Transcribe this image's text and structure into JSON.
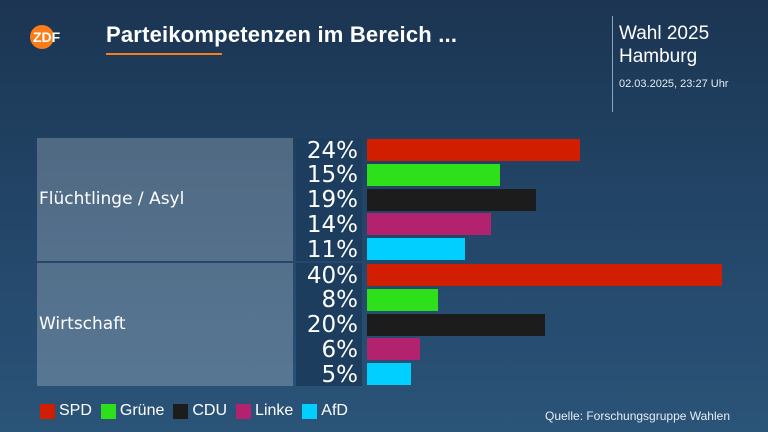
{
  "header": {
    "logo_text": "ZDF",
    "title": "Parteikompetenzen im Bereich ...",
    "election": "Wahl 2025",
    "region": "Hamburg",
    "timestamp": "02.03.2025, 23:27 Uhr"
  },
  "colors": {
    "accent": "#fa7d19",
    "background": "#224466"
  },
  "footer": {
    "source": "Quelle: Forschungsgruppe Wahlen"
  },
  "chart_data": {
    "type": "bar",
    "orientation": "horizontal",
    "unit": "%",
    "xlim": [
      0,
      40
    ],
    "grid": false,
    "legend_position": "bottom-left",
    "categories": [
      "Flüchtlinge / Asyl",
      "Wirtschaft"
    ],
    "series": [
      {
        "name": "SPD",
        "color": "#d11d00",
        "values": [
          24,
          40
        ],
        "labels": [
          "24%",
          "40%"
        ]
      },
      {
        "name": "Grüne",
        "color": "#2ee019",
        "values": [
          15,
          8
        ],
        "labels": [
          "15%",
          "8%"
        ]
      },
      {
        "name": "CDU",
        "color": "#1c1c1c",
        "values": [
          19,
          20
        ],
        "labels": [
          "19%",
          "20%"
        ]
      },
      {
        "name": "Linke",
        "color": "#b2226e",
        "values": [
          14,
          6
        ],
        "labels": [
          "14%",
          "6%"
        ]
      },
      {
        "name": "AfD",
        "color": "#00cfff",
        "values": [
          11,
          5
        ],
        "labels": [
          "11%",
          "5%"
        ]
      }
    ]
  }
}
